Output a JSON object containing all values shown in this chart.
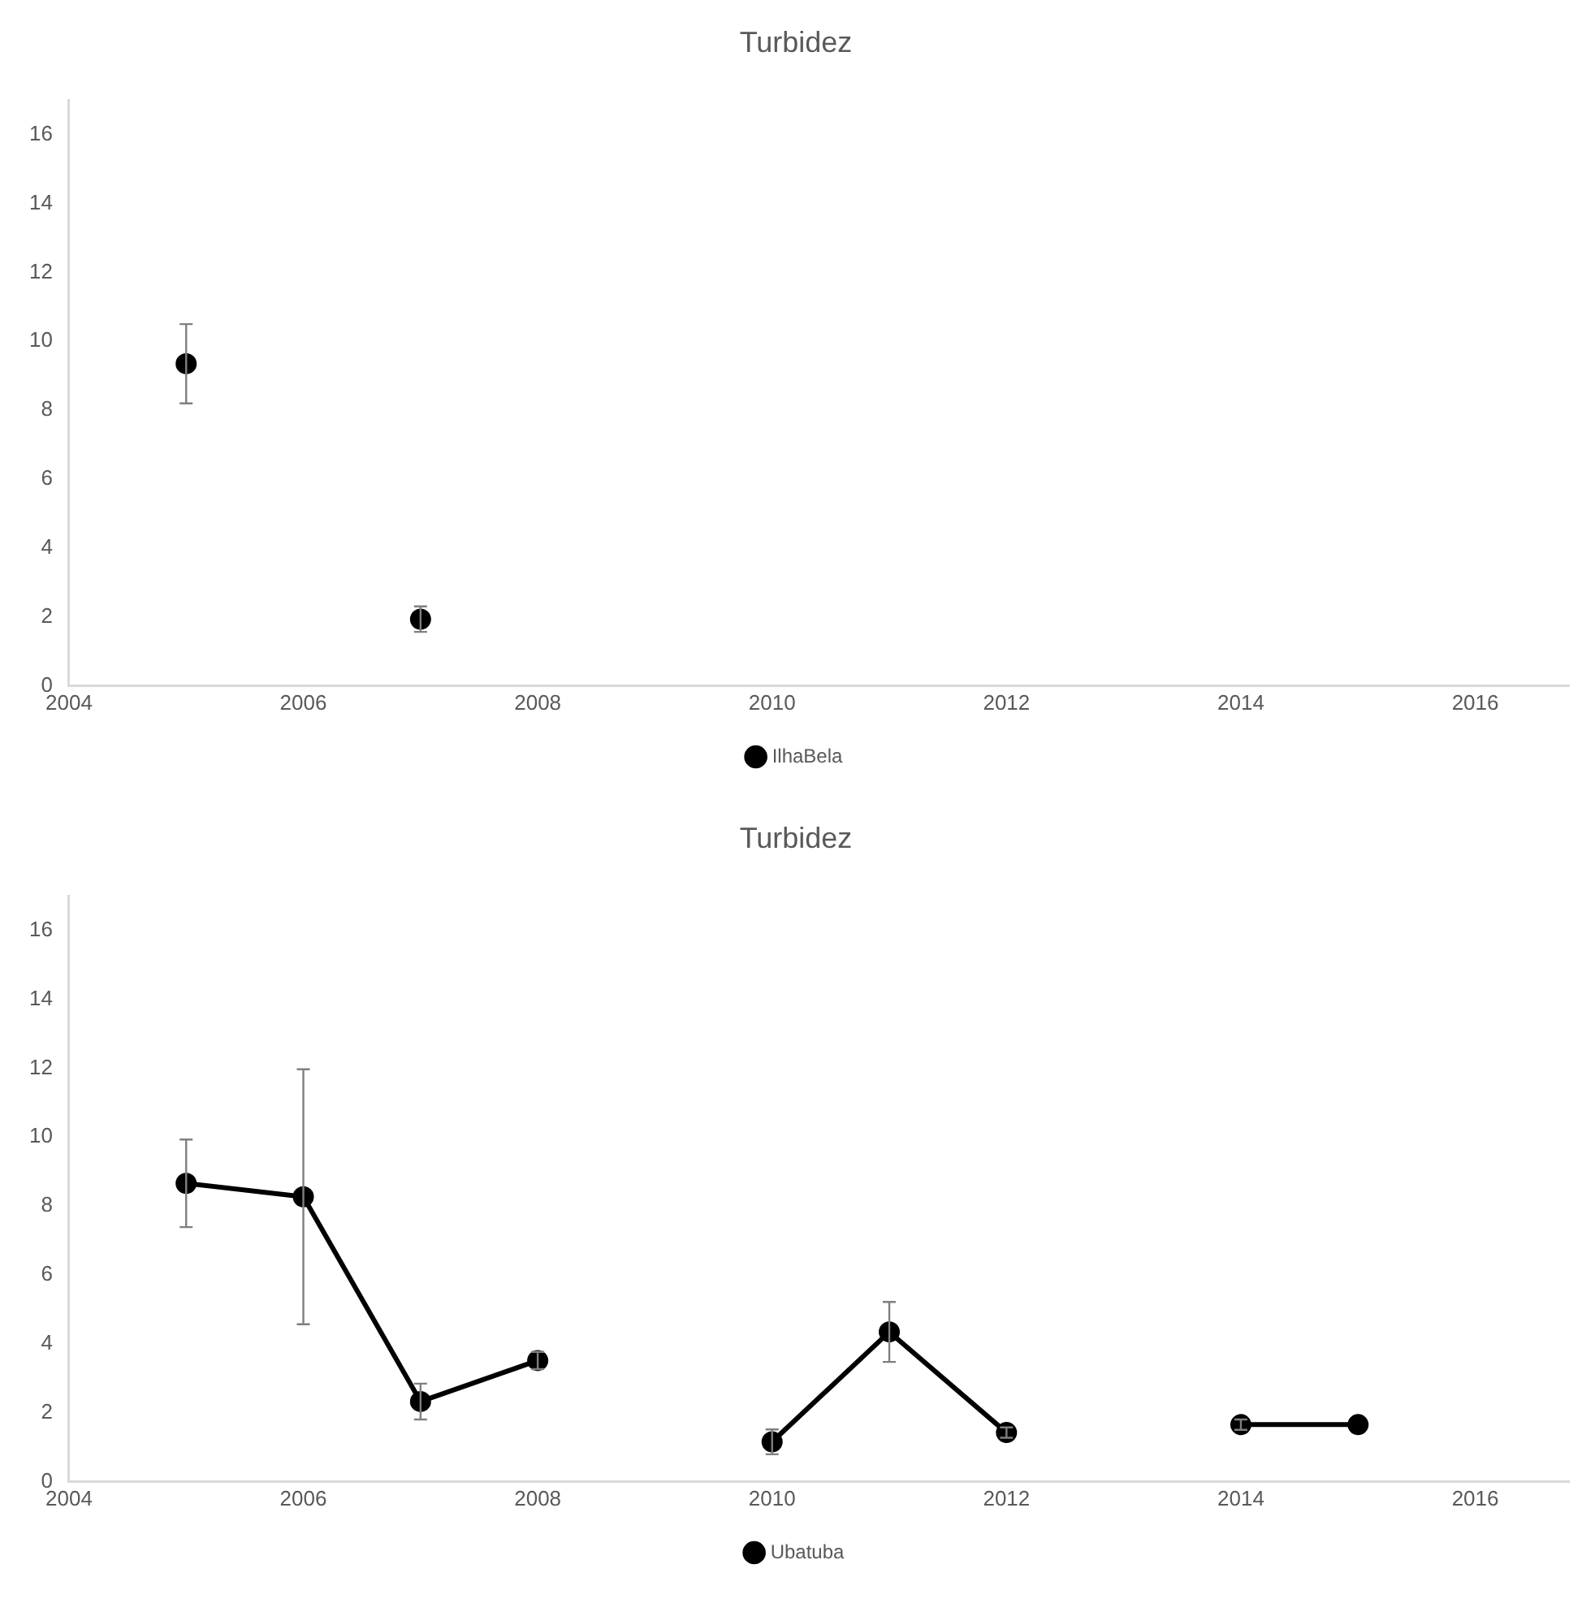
{
  "chart_data": [
    {
      "type": "scatter",
      "title": "Turbidez",
      "x": [
        2005,
        2006,
        2007
      ],
      "series": [
        {
          "name": "IlhaBela",
          "color": "#000000",
          "values": [
            9.35,
            null,
            1.94
          ],
          "errors": [
            1.15,
            null,
            0.37
          ]
        }
      ],
      "xlim": [
        2004,
        2016.8
      ],
      "xticks": [
        2004,
        2006,
        2008,
        2010,
        2012,
        2014,
        2016
      ],
      "ylim": [
        0,
        17
      ],
      "yticks": [
        0,
        2,
        4,
        6,
        8,
        10,
        12,
        14,
        16
      ],
      "grid": false,
      "legend": "bottom",
      "marker": "circle",
      "line_style": "solid"
    },
    {
      "type": "line",
      "title": "Turbidez",
      "x": [
        2005,
        2006,
        2007,
        2008,
        2009,
        2010,
        2011,
        2012,
        2013,
        2014,
        2015
      ],
      "series": [
        {
          "name": "Ubatuba",
          "color": "#000000",
          "values": [
            8.66,
            8.27,
            2.33,
            3.52,
            null,
            1.16,
            4.35,
            1.43,
            null,
            1.66,
            1.66
          ],
          "errors": [
            1.27,
            3.7,
            0.52,
            0.25,
            null,
            0.36,
            0.87,
            0.15,
            null,
            0.15,
            null
          ]
        }
      ],
      "xlim": [
        2004,
        2016.8
      ],
      "xticks": [
        2004,
        2006,
        2008,
        2010,
        2012,
        2014,
        2016
      ],
      "ylim": [
        0,
        17
      ],
      "yticks": [
        0,
        2,
        4,
        6,
        8,
        10,
        12,
        14,
        16
      ],
      "grid": false,
      "legend": "bottom",
      "marker": "circle",
      "line_style": "solid"
    }
  ]
}
